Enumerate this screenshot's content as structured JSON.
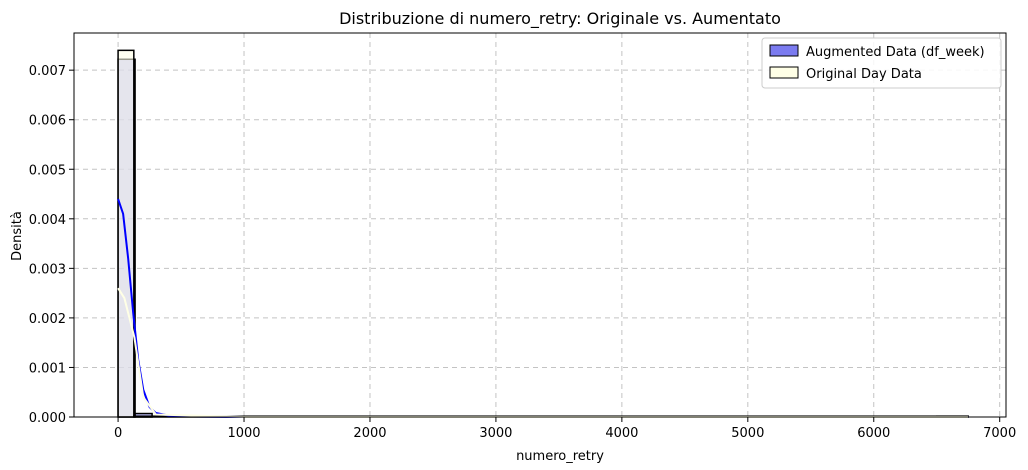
{
  "chart_data": {
    "type": "histogram",
    "title": "Distribuzione di numero_retry: Originale vs. Aumentato",
    "xlabel": "numero_retry",
    "ylabel": "Densità",
    "xlim": [
      -350,
      7050
    ],
    "ylim": [
      0,
      0.00775
    ],
    "xticks": [
      0,
      1000,
      2000,
      3000,
      4000,
      5000,
      6000,
      7000
    ],
    "xtick_labels": [
      "0",
      "1000",
      "2000",
      "3000",
      "4000",
      "5000",
      "6000",
      "7000"
    ],
    "yticks": [
      0.0,
      0.001,
      0.002,
      0.003,
      0.004,
      0.005,
      0.006,
      0.007
    ],
    "ytick_labels": [
      "0.000",
      "0.001",
      "0.002",
      "0.003",
      "0.004",
      "0.005",
      "0.006",
      "0.007"
    ],
    "grid": true,
    "legend_position": "top-right",
    "series": [
      {
        "name": "Augmented Data (df_week)",
        "kind": "histogram+kde",
        "fill_color": "#7b7bf0",
        "edge_color": "#000000",
        "kde_color": "#0000ff",
        "bins": [
          {
            "x0": 0,
            "x1": 135,
            "density": 0.00722
          },
          {
            "x0": 135,
            "x1": 270,
            "density": 7e-05
          },
          {
            "x0": 6500,
            "x1": 6750,
            "density": 4e-06
          }
        ],
        "kde": [
          [
            0,
            0.0044
          ],
          [
            40,
            0.0041
          ],
          [
            80,
            0.0032
          ],
          [
            120,
            0.0021
          ],
          [
            160,
            0.00115
          ],
          [
            200,
            0.00055
          ],
          [
            250,
            0.0002
          ],
          [
            300,
            8e-05
          ],
          [
            400,
            3e-05
          ],
          [
            600,
            1e-05
          ],
          [
            1000,
            0.0
          ],
          [
            6500,
            0.0
          ],
          [
            6750,
            0.0
          ]
        ]
      },
      {
        "name": "Original Day Data",
        "kind": "histogram+kde",
        "fill_color": "#ffffe6",
        "edge_color": "#000000",
        "kde_color": "#ffffe6",
        "bins": [
          {
            "x0": 0,
            "x1": 125,
            "density": 0.0074
          },
          {
            "x0": 125,
            "x1": 6750,
            "density": 3e-06
          }
        ],
        "kde": [
          [
            0,
            0.0026
          ],
          [
            50,
            0.0024
          ],
          [
            100,
            0.0019
          ],
          [
            130,
            0.0016
          ],
          [
            200,
            0.0004
          ],
          [
            300,
            5e-05
          ],
          [
            1000,
            0.0
          ],
          [
            6750,
            0.0
          ]
        ]
      }
    ]
  }
}
